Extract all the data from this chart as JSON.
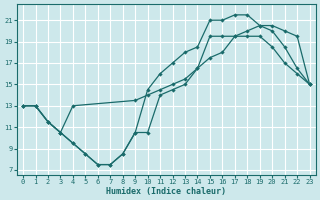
{
  "xlabel": "Humidex (Indice chaleur)",
  "xlim": [
    -0.5,
    23.5
  ],
  "ylim": [
    6.5,
    22.5
  ],
  "yticks": [
    7,
    9,
    11,
    13,
    15,
    17,
    19,
    21
  ],
  "xticks": [
    0,
    1,
    2,
    3,
    4,
    5,
    6,
    7,
    8,
    9,
    10,
    11,
    12,
    13,
    14,
    15,
    16,
    17,
    18,
    19,
    20,
    21,
    22,
    23
  ],
  "bg_color": "#cde8eb",
  "grid_color": "#ffffff",
  "line_color": "#1a6b6b",
  "line1_x": [
    0,
    1,
    2,
    3,
    4,
    5,
    6,
    7,
    8,
    9,
    10,
    11,
    12,
    13,
    14,
    15,
    16,
    17,
    18,
    19,
    20,
    21,
    22,
    23
  ],
  "line1_y": [
    13.0,
    13.0,
    11.5,
    10.5,
    9.5,
    8.5,
    7.5,
    7.5,
    8.5,
    10.5,
    10.5,
    14.0,
    14.5,
    15.0,
    16.5,
    19.5,
    19.5,
    19.5,
    19.5,
    19.5,
    18.5,
    17.0,
    16.0,
    15.0
  ],
  "line2_x": [
    0,
    1,
    2,
    3,
    4,
    5,
    6,
    7,
    8,
    9,
    10,
    11,
    12,
    13,
    14,
    15,
    16,
    17,
    18,
    19,
    20,
    21,
    22,
    23
  ],
  "line2_y": [
    13.0,
    13.0,
    11.5,
    10.5,
    9.5,
    8.5,
    7.5,
    7.5,
    8.5,
    10.5,
    14.5,
    16.0,
    17.0,
    18.0,
    18.5,
    21.0,
    21.0,
    21.5,
    21.5,
    20.5,
    20.0,
    18.5,
    16.5,
    15.0
  ],
  "line3_x": [
    0,
    1,
    2,
    3,
    4,
    9,
    10,
    11,
    12,
    13,
    14,
    15,
    16,
    17,
    18,
    19,
    20,
    21,
    22,
    23
  ],
  "line3_y": [
    13.0,
    13.0,
    11.5,
    10.5,
    13.0,
    13.5,
    14.0,
    14.5,
    15.0,
    15.5,
    16.5,
    17.5,
    18.0,
    19.5,
    20.0,
    20.5,
    20.5,
    20.0,
    19.5,
    15.0
  ]
}
